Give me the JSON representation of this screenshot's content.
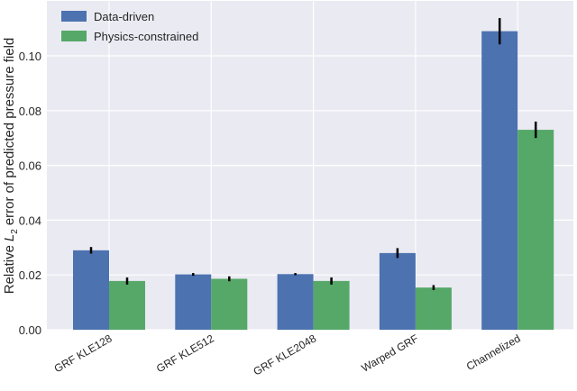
{
  "chart_data": {
    "type": "bar",
    "ylabel": {
      "prefix": "Relative",
      "variable": "L",
      "subscript": "2",
      "suffix": "error of predicted pressure field"
    },
    "categories": [
      "GRF KLE128",
      "GRF KLE512",
      "GRF KLE2048",
      "Warped GRF",
      "Channelized"
    ],
    "series": [
      {
        "name": "Data-driven",
        "color": "#4c72b0",
        "values": [
          0.029,
          0.0202,
          0.0203,
          0.028,
          0.109
        ],
        "errors": [
          0.0012,
          0.0005,
          0.0004,
          0.0018,
          0.0048
        ]
      },
      {
        "name": "Physics-constrained",
        "color": "#55a868",
        "values": [
          0.0178,
          0.0186,
          0.0178,
          0.0154,
          0.073
        ],
        "errors": [
          0.0013,
          0.0009,
          0.0013,
          0.0009,
          0.003
        ]
      }
    ],
    "ylim": [
      0,
      0.12
    ],
    "yticks": [
      {
        "value": 0,
        "label": "0.00"
      },
      {
        "value": 0.02,
        "label": "0.02"
      },
      {
        "value": 0.04,
        "label": "0.04"
      },
      {
        "value": 0.06,
        "label": "0.06"
      },
      {
        "value": 0.08,
        "label": "0.08"
      },
      {
        "value": 0.1,
        "label": "0.10"
      }
    ],
    "grid": true,
    "legend": "upper left"
  }
}
